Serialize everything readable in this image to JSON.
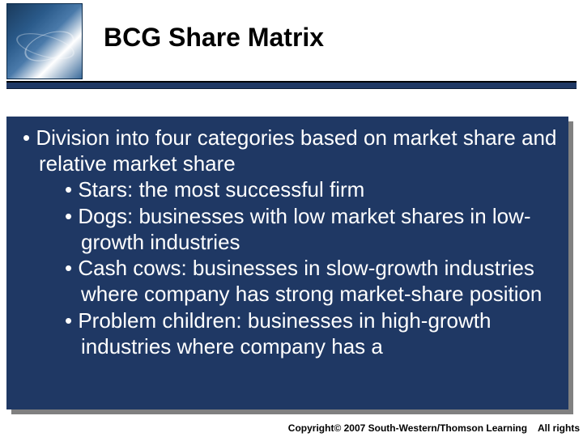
{
  "header": {
    "title": "BCG Share Matrix",
    "accent_color": "#1f3864"
  },
  "content": {
    "background_color": "#1f3864",
    "text_color": "#ffffff",
    "font_size_pt": 20,
    "main_bullet": "Division into four categories based on market share and relative market share",
    "sub_bullets": [
      "Stars: the most successful firm",
      "Dogs: businesses with low market shares in low-growth industries",
      "Cash cows: businesses in slow-growth industries where company has strong market-share position",
      "Problem children: businesses in high-growth industries where company has a"
    ]
  },
  "footer": {
    "copyright": "Copyright© 2007 South-Western/Thomson Learning",
    "rights": "All rights"
  }
}
